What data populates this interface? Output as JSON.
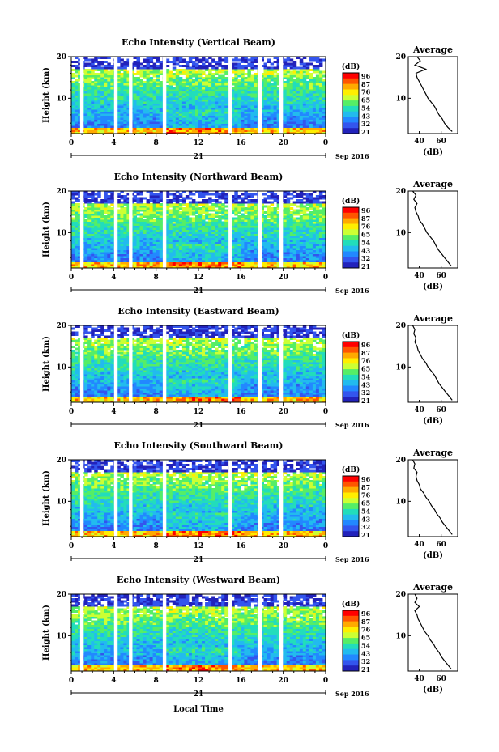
{
  "figure": {
    "xlabel": "Local Time",
    "date_label": "21",
    "month_label": "Sep 2016"
  },
  "colorbar": {
    "unit": "(dB)",
    "ticks": [
      "96",
      "87",
      "76",
      "65",
      "54",
      "43",
      "32",
      "21"
    ],
    "colors": [
      "#ff0000",
      "#ff5500",
      "#ffaa00",
      "#ffee00",
      "#ccff33",
      "#55ee66",
      "#22ddbb",
      "#22bbee",
      "#2288ff",
      "#3355ee",
      "#2222bb"
    ]
  },
  "chart_data": [
    {
      "type": "heatmap",
      "title": "Echo Intensity (Vertical Beam)",
      "xlabel": "Local Time",
      "ylabel": "Height (km)",
      "x_ticks": [
        "0",
        "4",
        "8",
        "12",
        "16",
        "20",
        "0"
      ],
      "y_ticks": [
        "10",
        "20"
      ],
      "xlim": [
        0,
        24
      ],
      "ylim": [
        1.5,
        20
      ],
      "color_unit": "(dB)",
      "gaps_hours": [
        1,
        4.2,
        5.6,
        8.8,
        15,
        17.8,
        19.8
      ],
      "profile": {
        "title": "Average",
        "xlabel": "(dB)",
        "x_ticks": [
          "40",
          "60"
        ],
        "y_ticks": [
          "10",
          "20"
        ],
        "xlim": [
          30,
          75
        ],
        "ylim": [
          1.5,
          20
        ],
        "height": [
          2,
          3,
          4,
          5,
          6,
          7,
          8,
          9,
          10,
          11,
          12,
          13,
          14,
          15,
          16,
          17,
          18,
          19,
          20
        ],
        "db": [
          70,
          66,
          63,
          61,
          58,
          56,
          54,
          51,
          48,
          46,
          44,
          42,
          40,
          38,
          37,
          46,
          36,
          41,
          38
        ]
      }
    },
    {
      "type": "heatmap",
      "title": "Echo Intensity (Northward Beam)",
      "xlabel": "Local Time",
      "ylabel": "Height (km)",
      "x_ticks": [
        "0",
        "4",
        "8",
        "12",
        "16",
        "20",
        "0"
      ],
      "y_ticks": [
        "10",
        "20"
      ],
      "xlim": [
        0,
        24
      ],
      "ylim": [
        1.5,
        20
      ],
      "color_unit": "(dB)",
      "gaps_hours": [
        1,
        4.2,
        5.6,
        8.8,
        15,
        17.8,
        19.8
      ],
      "profile": {
        "title": "Average",
        "xlabel": "(dB)",
        "x_ticks": [
          "40",
          "60"
        ],
        "y_ticks": [
          "10",
          "20"
        ],
        "xlim": [
          30,
          75
        ],
        "ylim": [
          1.5,
          20
        ],
        "height": [
          2,
          3,
          4,
          5,
          6,
          7,
          8,
          9,
          10,
          11,
          12,
          13,
          14,
          15,
          16,
          17,
          18,
          19,
          20
        ],
        "db": [
          69,
          66,
          63,
          60,
          57,
          55,
          53,
          50,
          47,
          45,
          43,
          40,
          39,
          37,
          36,
          38,
          35,
          37,
          34
        ]
      }
    },
    {
      "type": "heatmap",
      "title": "Echo Intensity (Eastward Beam)",
      "xlabel": "Local Time",
      "ylabel": "Height (km)",
      "x_ticks": [
        "0",
        "4",
        "8",
        "12",
        "16",
        "20",
        "0"
      ],
      "y_ticks": [
        "10",
        "20"
      ],
      "xlim": [
        0,
        24
      ],
      "ylim": [
        1.5,
        20
      ],
      "color_unit": "(dB)",
      "gaps_hours": [
        1,
        4.2,
        5.6,
        8.8,
        15,
        17.8,
        19.8
      ],
      "profile": {
        "title": "Average",
        "xlabel": "(dB)",
        "x_ticks": [
          "40",
          "60"
        ],
        "y_ticks": [
          "10",
          "20"
        ],
        "xlim": [
          30,
          75
        ],
        "ylim": [
          1.5,
          20
        ],
        "height": [
          2,
          3,
          4,
          5,
          6,
          7,
          8,
          9,
          10,
          11,
          12,
          13,
          14,
          15,
          16,
          17,
          18,
          19,
          20
        ],
        "db": [
          70,
          67,
          64,
          61,
          58,
          56,
          54,
          51,
          48,
          46,
          43,
          41,
          39,
          38,
          36,
          37,
          35,
          36,
          34
        ]
      }
    },
    {
      "type": "heatmap",
      "title": "Echo Intensity (Southward Beam)",
      "xlabel": "Local Time",
      "ylabel": "Height (km)",
      "x_ticks": [
        "0",
        "4",
        "8",
        "12",
        "16",
        "20",
        "0"
      ],
      "y_ticks": [
        "10",
        "20"
      ],
      "xlim": [
        0,
        24
      ],
      "ylim": [
        1.5,
        20
      ],
      "color_unit": "(dB)",
      "gaps_hours": [
        1,
        4.2,
        5.6,
        8.8,
        15,
        17.8,
        19.8
      ],
      "profile": {
        "title": "Average",
        "xlabel": "(dB)",
        "x_ticks": [
          "40",
          "60"
        ],
        "y_ticks": [
          "10",
          "20"
        ],
        "xlim": [
          30,
          75
        ],
        "ylim": [
          1.5,
          20
        ],
        "height": [
          2,
          3,
          4,
          5,
          6,
          7,
          8,
          9,
          10,
          11,
          12,
          13,
          14,
          15,
          16,
          17,
          18,
          19,
          20
        ],
        "db": [
          70,
          67,
          64,
          61,
          59,
          56,
          54,
          51,
          49,
          46,
          44,
          41,
          40,
          38,
          37,
          38,
          35,
          36,
          34
        ]
      }
    },
    {
      "type": "heatmap",
      "title": "Echo Intensity (Westward Beam)",
      "xlabel": "Local Time",
      "ylabel": "Height (km)",
      "x_ticks": [
        "0",
        "4",
        "8",
        "12",
        "16",
        "20",
        "0"
      ],
      "y_ticks": [
        "10",
        "20"
      ],
      "xlim": [
        0,
        24
      ],
      "ylim": [
        1.5,
        20
      ],
      "color_unit": "(dB)",
      "gaps_hours": [
        1,
        4.2,
        5.6,
        8.8,
        15,
        17.8,
        19.8
      ],
      "profile": {
        "title": "Average",
        "xlabel": "(dB)",
        "x_ticks": [
          "40",
          "60"
        ],
        "y_ticks": [
          "10",
          "20"
        ],
        "xlim": [
          30,
          75
        ],
        "ylim": [
          1.5,
          20
        ],
        "height": [
          2,
          3,
          4,
          5,
          6,
          7,
          8,
          9,
          10,
          11,
          12,
          13,
          14,
          15,
          16,
          17,
          18,
          19,
          20
        ],
        "db": [
          69,
          66,
          63,
          60,
          58,
          55,
          53,
          50,
          48,
          45,
          43,
          41,
          39,
          38,
          36,
          40,
          36,
          38,
          36
        ]
      }
    }
  ]
}
